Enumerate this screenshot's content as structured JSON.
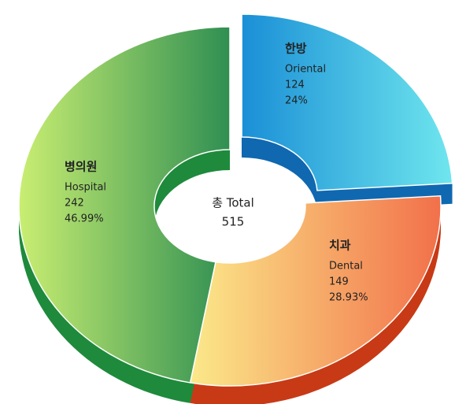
{
  "chart_data": {
    "type": "pie",
    "center_label": "총 Total",
    "total": 515,
    "categories": [
      "한방",
      "치과",
      "병의원"
    ],
    "subnames": [
      "Oriental",
      "Dental",
      "Hospital"
    ],
    "values": [
      124,
      149,
      242
    ],
    "percent_labels": [
      "24%",
      "28.93%",
      "46.99%"
    ],
    "colors": [
      [
        "#1a8fd6",
        "#6fe6ee"
      ],
      [
        "#fbe98a",
        "#f2704a"
      ],
      [
        "#c9ee72",
        "#2f8f52"
      ]
    ],
    "side_colors": [
      "#1068b0",
      "#c83a16",
      "#1f8a3c"
    ]
  }
}
